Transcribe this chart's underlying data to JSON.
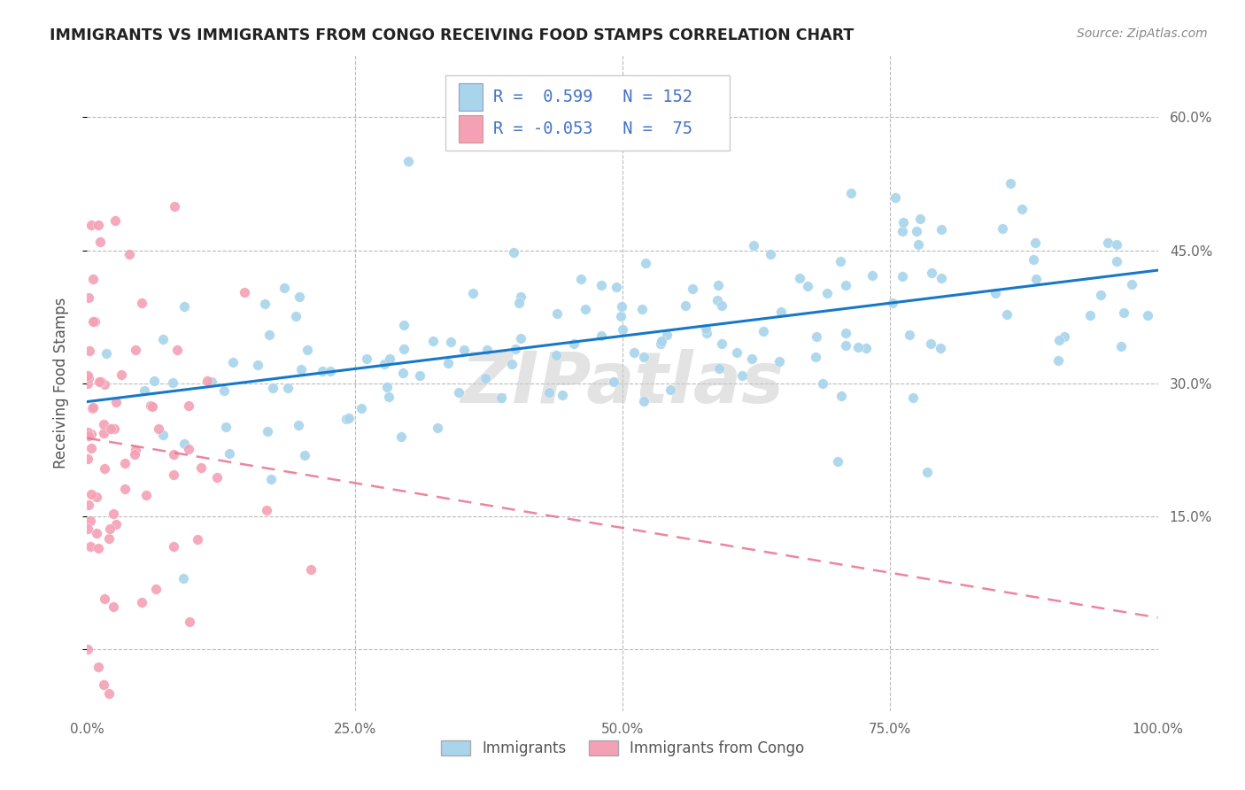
{
  "title": "IMMIGRANTS VS IMMIGRANTS FROM CONGO RECEIVING FOOD STAMPS CORRELATION CHART",
  "source": "Source: ZipAtlas.com",
  "ylabel": "Receiving Food Stamps",
  "yticks": [
    0.0,
    0.15,
    0.3,
    0.45,
    0.6
  ],
  "ytick_labels": [
    "",
    "15.0%",
    "30.0%",
    "45.0%",
    "60.0%"
  ],
  "xticks": [
    0.0,
    0.25,
    0.5,
    0.75,
    1.0
  ],
  "xtick_labels": [
    "0.0%",
    "25.0%",
    "50.0%",
    "75.0%",
    "100.0%"
  ],
  "xlim": [
    0.0,
    1.0
  ],
  "ylim": [
    -0.07,
    0.67
  ],
  "blue_color": "#A8D4EC",
  "pink_color": "#F4A0B5",
  "blue_line_color": "#1878C8",
  "pink_line_color": "#E87090",
  "r_blue": 0.599,
  "n_blue": 152,
  "r_pink": -0.053,
  "n_pink": 75,
  "legend_label_blue": "Immigrants",
  "legend_label_pink": "Immigrants from Congo",
  "watermark": "ZIPatlas",
  "background_color": "#FFFFFF",
  "grid_color": "#BBBBBB",
  "title_color": "#222222",
  "legend_text_color": "#4472C4"
}
